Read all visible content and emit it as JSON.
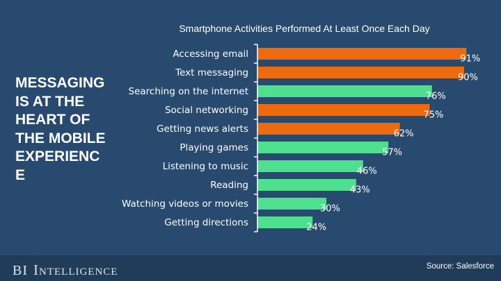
{
  "headline": "MESSAGING\nIS AT THE\nHEART OF\nTHE MOBILE\nEXPERIENC\nE",
  "brand": {
    "part1": "BI",
    "part2_initial": "I",
    "part2_rest": "NTELLIGENCE"
  },
  "source": "Source: Salesforce",
  "colors": {
    "background": "#284a6e",
    "orange": "#ed6a0e",
    "green": "#4fe08f"
  },
  "chart_data": {
    "type": "bar",
    "orientation": "horizontal",
    "title": "Smartphone Activities Performed At Least Once Each Day",
    "xlabel": "",
    "ylabel": "",
    "xlim": [
      0,
      100
    ],
    "grid": false,
    "categories": [
      "Accessing email",
      "Text messaging",
      "Searching on the internet",
      "Social networking",
      "Getting news alerts",
      "Playing games",
      "Listening to music",
      "Reading",
      "Watching videos or movies",
      "Getting directions"
    ],
    "values": [
      91,
      90,
      76,
      75,
      62,
      57,
      46,
      43,
      30,
      24
    ],
    "value_labels": [
      "91%",
      "90%",
      "76%",
      "75%",
      "62%",
      "57%",
      "46%",
      "43%",
      "30%",
      "24%"
    ],
    "bar_colors": [
      "orange",
      "orange",
      "green",
      "orange",
      "orange",
      "green",
      "green",
      "green",
      "green",
      "green"
    ]
  }
}
